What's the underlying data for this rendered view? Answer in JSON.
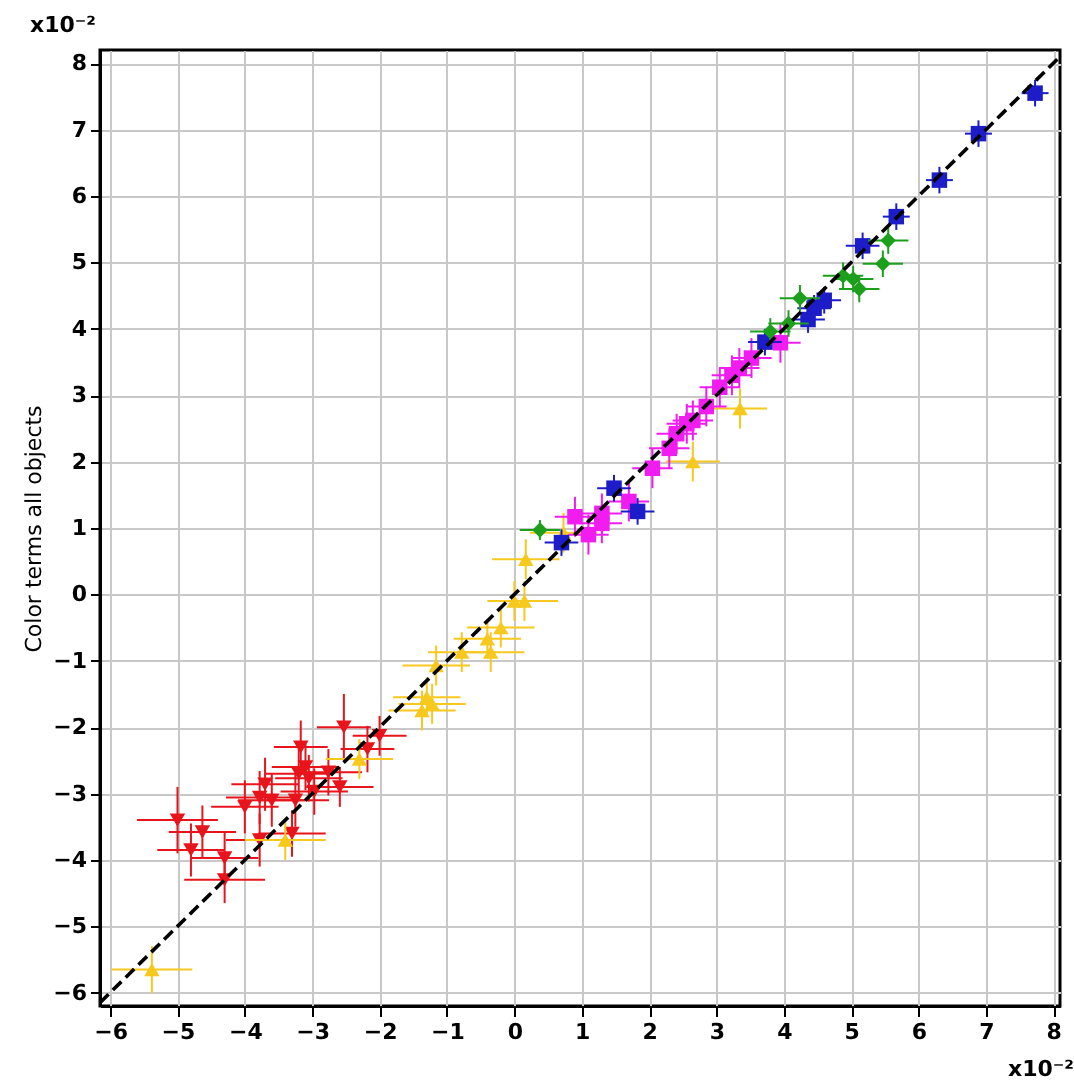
{
  "chart_data": {
    "type": "scatter",
    "ylabel": "Color terms all objects",
    "annotations": [
      "x10⁻²",
      "x10⁻²"
    ],
    "grid": true,
    "xlim": [
      -6.15,
      8.1
    ],
    "ylim": [
      -6.2,
      8.2
    ],
    "xticks": [
      -6,
      -5,
      -4,
      -3,
      -2,
      -1,
      0,
      1,
      2,
      3,
      4,
      5,
      6,
      7,
      8
    ],
    "yticks": [
      -6,
      -5,
      -4,
      -3,
      -2,
      -1,
      0,
      1,
      2,
      3,
      4,
      5,
      6,
      7,
      8
    ],
    "series": [
      {
        "color": "#e8141c",
        "marker": "triangle-down",
        "x": [
          -5.0,
          -4.63,
          -4.8,
          -4.3,
          -4.3,
          -3.78,
          -3.3,
          -4.0,
          -3.78,
          -3.7,
          -3.6,
          -3.25,
          -3.2,
          -3.17,
          -3.05,
          -2.97,
          -2.76,
          -2.59,
          -2.53,
          -2.18,
          -2.0,
          -3.1
        ],
        "values": [
          -3.4,
          -3.58,
          -3.85,
          -3.97,
          -4.3,
          -3.7,
          -3.6,
          -3.2,
          -3.06,
          -2.86,
          -3.1,
          -3.1,
          -2.7,
          -2.3,
          -2.77,
          -2.97,
          -2.68,
          -2.9,
          -2.0,
          -2.33,
          -2.13,
          -2.6
        ],
        "errors": [
          0.5,
          0.4,
          0.4,
          0.4,
          0.35,
          0.4,
          0.35,
          0.4,
          0.4,
          0.4,
          0.4,
          0.4,
          0.4,
          0.4,
          0.35,
          0.35,
          0.35,
          0.3,
          0.5,
          0.35,
          0.3,
          0.35
        ],
        "xerrors": [
          0.6,
          0.5,
          0.5,
          0.5,
          0.6,
          0.5,
          0.5,
          0.5,
          0.5,
          0.5,
          0.5,
          0.5,
          0.5,
          0.4,
          0.5,
          0.5,
          0.5,
          0.5,
          0.4,
          0.4,
          0.4,
          0.5
        ]
      },
      {
        "color": "#f7c81e",
        "marker": "triangle-up",
        "x": [
          -5.38,
          -3.4,
          -2.3,
          -1.37,
          0.17,
          0.15,
          0.0,
          -0.2,
          -0.4,
          -0.35,
          -0.78,
          -1.16,
          -1.3,
          -1.22,
          0.73,
          2.65,
          3.35
        ],
        "values": [
          -5.65,
          -3.7,
          -2.48,
          -1.75,
          0.53,
          -0.1,
          -0.1,
          -0.5,
          -0.67,
          -0.87,
          -0.87,
          -1.07,
          -1.55,
          -1.65,
          0.93,
          2.0,
          2.8
        ],
        "errors": [
          0.35,
          0.3,
          0.3,
          0.3,
          0.3,
          0.3,
          0.3,
          0.3,
          0.3,
          0.3,
          0.3,
          0.3,
          0.3,
          0.3,
          0.3,
          0.3,
          0.3
        ],
        "xerrors": [
          0.6,
          0.6,
          0.5,
          0.5,
          0.5,
          0.5,
          0.4,
          0.5,
          0.5,
          0.5,
          0.5,
          0.5,
          0.5,
          0.5,
          0.5,
          0.4,
          0.4
        ]
      },
      {
        "color": "#f01cf0",
        "marker": "square",
        "x": [
          0.9,
          1.1,
          1.3,
          1.3,
          1.7,
          2.05,
          2.3,
          2.41,
          2.65,
          2.85,
          2.56,
          3.05,
          3.34,
          3.52,
          3.95,
          3.23
        ],
        "values": [
          1.17,
          0.9,
          1.22,
          1.07,
          1.4,
          1.9,
          2.2,
          2.42,
          2.62,
          2.83,
          2.57,
          3.12,
          3.41,
          3.56,
          3.79,
          3.3
        ],
        "errors": [
          0.3,
          0.3,
          0.3,
          0.3,
          0.3,
          0.3,
          0.3,
          0.3,
          0.3,
          0.3,
          0.3,
          0.3,
          0.3,
          0.3,
          0.3,
          0.3
        ],
        "xerrors": [
          0.3,
          0.3,
          0.3,
          0.3,
          0.3,
          0.3,
          0.3,
          0.3,
          0.3,
          0.3,
          0.3,
          0.3,
          0.3,
          0.3,
          0.3,
          0.3
        ]
      },
      {
        "color": "#1c1cc8",
        "marker": "square",
        "x": [
          0.7,
          1.48,
          1.83,
          7.73,
          6.89,
          6.31,
          5.67,
          5.17,
          4.6,
          4.45,
          4.36,
          3.72
        ],
        "values": [
          0.78,
          1.6,
          1.25,
          7.55,
          6.94,
          6.24,
          5.69,
          5.25,
          4.43,
          4.31,
          4.14,
          3.8
        ],
        "errors": [
          0.2,
          0.2,
          0.2,
          0.2,
          0.2,
          0.2,
          0.2,
          0.2,
          0.2,
          0.2,
          0.2,
          0.2
        ],
        "xerrors": [
          0.25,
          0.25,
          0.25,
          0.2,
          0.2,
          0.2,
          0.2,
          0.25,
          0.25,
          0.25,
          0.25,
          0.25
        ]
      },
      {
        "color": "#1ca01c",
        "marker": "diamond",
        "x": [
          0.38,
          3.8,
          4.24,
          5.03,
          5.12,
          5.47,
          5.55,
          4.88,
          4.07
        ],
        "values": [
          0.97,
          3.96,
          4.46,
          4.75,
          4.6,
          4.98,
          5.33,
          4.8,
          4.08
        ],
        "errors": [
          0.15,
          0.2,
          0.2,
          0.2,
          0.2,
          0.2,
          0.2,
          0.2,
          0.2
        ],
        "xerrors": [
          0.3,
          0.3,
          0.3,
          0.3,
          0.3,
          0.3,
          0.3,
          0.3,
          0.3
        ]
      },
      {
        "type": "line",
        "color": "#000000",
        "line_style": "dashed",
        "marker": "none",
        "x": [
          -6.15,
          8.1
        ],
        "values": [
          -6.15,
          8.1
        ]
      }
    ]
  }
}
